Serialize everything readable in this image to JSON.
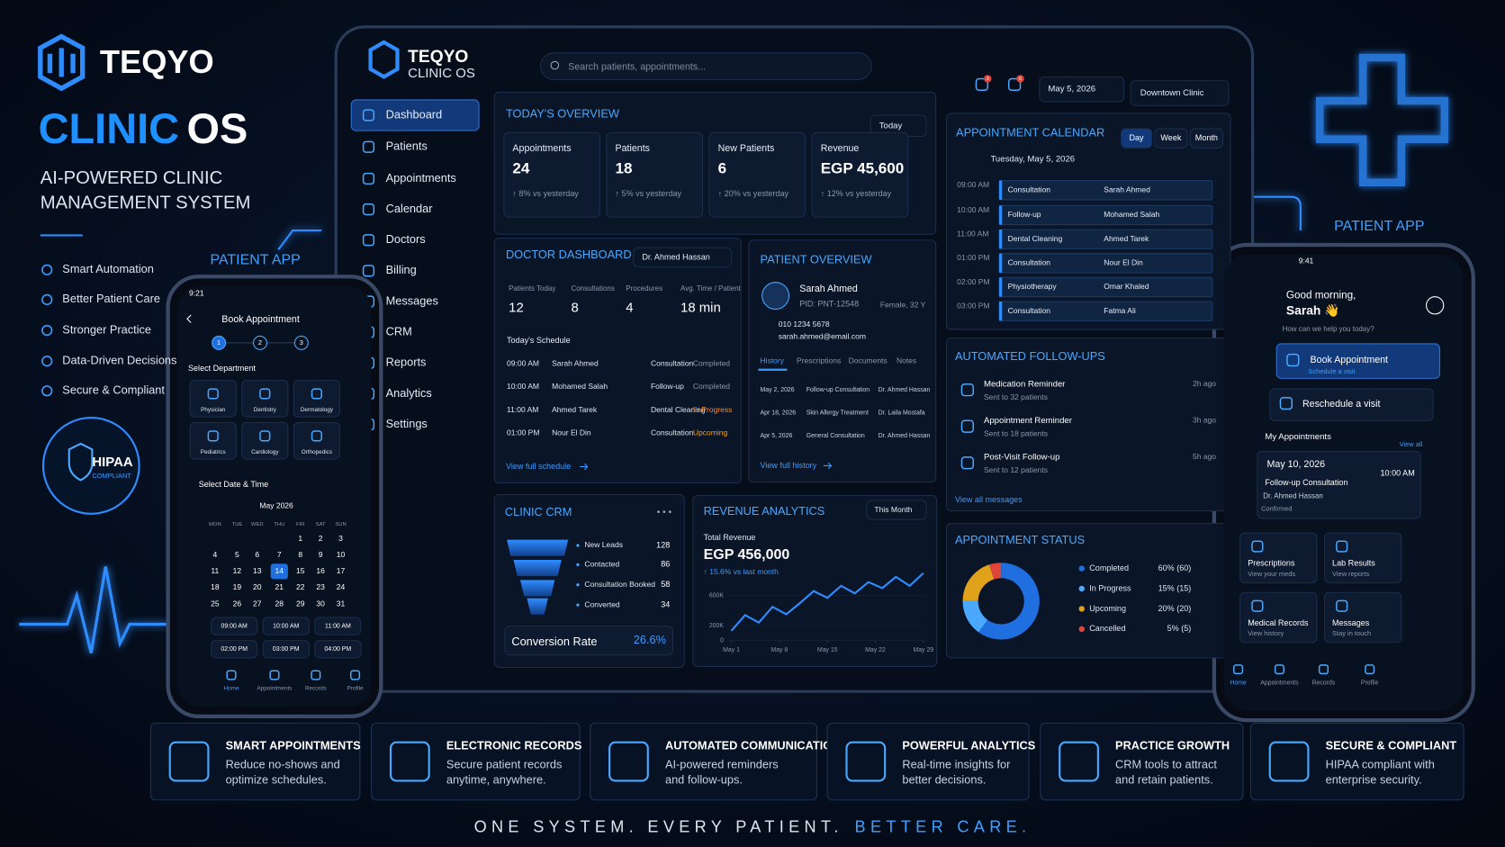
{
  "brand": {
    "name": "TEQYO",
    "product": "CLINIC",
    "product_suffix": "OS",
    "tagline": [
      "AI-POWERED CLINIC",
      "MANAGEMENT SYSTEM"
    ],
    "features": [
      "Smart Automation",
      "Better Patient Care",
      "Stronger Practice",
      "Data-Driven Decisions",
      "Secure & Compliant"
    ],
    "badge": {
      "title": "HIPAA",
      "subtitle": "COMPLIANT"
    }
  },
  "app_labels": [
    "PATIENT APP",
    "PATIENT APP"
  ],
  "dashboard": {
    "logo": {
      "name": "TEQYO",
      "product": "CLINIC OS"
    },
    "search": "Search patients, appointments...",
    "badges": [
      "3",
      "6"
    ],
    "date": "May 5, 2026",
    "clinic": "Downtown Clinic",
    "nav": [
      "Dashboard",
      "Patients",
      "Appointments",
      "Calendar",
      "Doctors",
      "Billing",
      "Messages",
      "CRM",
      "Reports",
      "Analytics",
      "Settings"
    ],
    "overview": {
      "title": "TODAY'S OVERVIEW",
      "filter": "Today",
      "cards": [
        {
          "label": "Appointments",
          "value": "24",
          "delta": "↑ 8% vs yesterday"
        },
        {
          "label": "Patients",
          "value": "18",
          "delta": "↑ 5% vs yesterday"
        },
        {
          "label": "New Patients",
          "value": "6",
          "delta": "↑ 20% vs yesterday"
        },
        {
          "label": "Revenue",
          "value": "EGP 45,600",
          "delta": "↑ 12% vs yesterday"
        }
      ]
    },
    "doctor": {
      "title": "DOCTOR DASHBOARD",
      "doctor": "Dr. Ahmed Hassan",
      "stats": [
        {
          "label": "Patients Today",
          "value": "12"
        },
        {
          "label": "Consultations",
          "value": "8"
        },
        {
          "label": "Procedures",
          "value": "4"
        },
        {
          "label": "Avg. Time / Patient",
          "value": "18 min"
        }
      ],
      "schedule_title": "Today's Schedule",
      "schedule": [
        [
          "09:00 AM",
          "Sarah Ahmed",
          "Consultation",
          "Completed"
        ],
        [
          "10:00 AM",
          "Mohamed Salah",
          "Follow-up",
          "Completed"
        ],
        [
          "11:00 AM",
          "Ahmed Tarek",
          "Dental Cleaning",
          "In Progress"
        ],
        [
          "01:00 PM",
          "Nour El Din",
          "Consultation",
          "Upcoming"
        ]
      ],
      "link": "View full schedule"
    },
    "patient": {
      "title": "PATIENT OVERVIEW",
      "name": "Sarah Ahmed",
      "pid": "PID: PNT-12548",
      "info": "Female, 32 Y",
      "phone": "010 1234 5678",
      "email": "sarah.ahmed@email.com",
      "tabs": [
        "History",
        "Prescriptions",
        "Documents",
        "Notes"
      ],
      "history": [
        [
          "May 2, 2026",
          "Follow-up Consultation",
          "Dr. Ahmed Hassan"
        ],
        [
          "Apr 18, 2026",
          "Skin Allergy Treatment",
          "Dr. Laila Mostafa"
        ],
        [
          "Apr 5, 2026",
          "General Consultation",
          "Dr. Ahmed Hassan"
        ]
      ],
      "link": "View full history"
    },
    "calendar": {
      "title": "APPOINTMENT CALENDAR",
      "tabs": [
        "Day",
        "Week",
        "Month"
      ],
      "date": "Tuesday, May 5, 2026",
      "slots": [
        [
          "09:00 AM",
          "Consultation",
          "Sarah Ahmed"
        ],
        [
          "10:00 AM",
          "Follow-up",
          "Mohamed Salah"
        ],
        [
          "11:00 AM",
          "Dental Cleaning",
          "Ahmed Tarek"
        ],
        [
          "01:00 PM",
          "Consultation",
          "Nour El Din"
        ],
        [
          "02:00 PM",
          "Physiotherapy",
          "Omar Khaled"
        ],
        [
          "03:00 PM",
          "Consultation",
          "Fatma Ali"
        ]
      ]
    },
    "followups": {
      "title": "AUTOMATED FOLLOW-UPS",
      "items": [
        [
          "Medication Reminder",
          "Sent to 32 patients",
          "2h ago"
        ],
        [
          "Appointment Reminder",
          "Sent to 18 patients",
          "3h ago"
        ],
        [
          "Post-Visit Follow-up",
          "Sent to 12 patients",
          "5h ago"
        ]
      ],
      "link": "View all messages"
    },
    "crm": {
      "title": "CLINIC CRM",
      "funnel": [
        [
          "New Leads",
          "128"
        ],
        [
          "Contacted",
          "86"
        ],
        [
          "Consultation Booked",
          "58"
        ],
        [
          "Converted",
          "34"
        ]
      ],
      "conversion_label": "Conversion Rate",
      "conversion": "26.6%"
    },
    "revenue": {
      "title": "REVENUE ANALYTICS",
      "filter": "This Month",
      "label": "Total Revenue",
      "total": "EGP 456,000",
      "delta": "↑ 15.6% vs last month",
      "chart": {
        "type": "line",
        "x": [
          1,
          3,
          5,
          7,
          9,
          11,
          13,
          15,
          17,
          19,
          21,
          23,
          25,
          27,
          29
        ],
        "values": [
          130000,
          340000,
          240000,
          450000,
          350000,
          500000,
          660000,
          570000,
          730000,
          630000,
          780000,
          700000,
          850000,
          730000,
          900000
        ],
        "color": "#2f8cff",
        "xlim": [
          1,
          29
        ],
        "ylim": [
          0,
          1000000
        ],
        "xticks": [
          {
            "value": 1,
            "label": "May 1"
          },
          {
            "value": 8,
            "label": "May 8"
          },
          {
            "value": 15,
            "label": "May 15"
          },
          {
            "value": 22,
            "label": "May 22"
          },
          {
            "value": 29,
            "label": "May 29"
          }
        ],
        "yticks": [
          0,
          {
            "value": 200000,
            "label": "200K"
          },
          {
            "value": 600000,
            "label": "600K"
          }
        ]
      }
    },
    "status": {
      "title": "APPOINTMENT STATUS",
      "chart": {
        "type": "pie",
        "categories": [
          "Completed",
          "In Progress",
          "Upcoming",
          "Cancelled"
        ],
        "values": [
          60,
          15,
          20,
          5
        ],
        "value_labels": [
          "60% (60)",
          "15% (15)",
          "20% (20)",
          "5% (5)"
        ],
        "colors": [
          "#1f6fe0",
          "#4aa8ff",
          "#e0a21a",
          "#e0453a"
        ]
      }
    }
  },
  "left_phone": {
    "time": "9:21",
    "title": "Book Appointment",
    "steps": [
      "1",
      "2",
      "3"
    ],
    "department_title": "Select Department",
    "departments": [
      "Physician",
      "Dentistry",
      "Dermatology",
      "Pediatrics",
      "Cardiology",
      "Orthopedics"
    ],
    "date_title": "Select Date & Time",
    "month": "May 2026",
    "weekdays": [
      "MON",
      "TUE",
      "WED",
      "THU",
      "FRI",
      "SAT",
      "SUN"
    ],
    "days": [
      "1",
      "2",
      "3",
      "4",
      "5",
      "6",
      "7",
      "8",
      "9",
      "10",
      "11",
      "12",
      "13",
      "14",
      "15",
      "16",
      "17",
      "18",
      "19",
      "20",
      "21",
      "22",
      "23",
      "24",
      "25",
      "26",
      "27",
      "28",
      "29",
      "30",
      "31"
    ],
    "selected_day": "14",
    "times": [
      "09:00 AM",
      "10:00 AM",
      "11:00 AM",
      "02:00 PM",
      "03:00 PM",
      "04:00 PM"
    ],
    "tabs": [
      "Home",
      "Appointments",
      "Records",
      "Profile"
    ]
  },
  "right_phone": {
    "time": "9:41",
    "greeting": "Good morning,",
    "name": "Sarah 👋",
    "prompt": "How can we help you today?",
    "book": "Book Appointment",
    "book_sub": "Schedule a visit",
    "reschedule": "Reschedule a visit",
    "appointments_title": "My Appointments",
    "view_all": "View all",
    "appointment": {
      "date": "May 10, 2026",
      "time": "10:00 AM",
      "type": "Follow-up Consultation",
      "doctor": "Dr. Ahmed Hassan",
      "status": "Confirmed"
    },
    "tiles": [
      [
        "Prescriptions",
        "View your meds"
      ],
      [
        "Lab Results",
        "View reports"
      ],
      [
        "Medical Records",
        "View history"
      ],
      [
        "Messages",
        "Stay in touch"
      ]
    ],
    "tabs": [
      "Home",
      "Appointments",
      "Records",
      "Profile"
    ]
  },
  "features": [
    {
      "title": "SMART APPOINTMENTS",
      "lines": [
        "Reduce no-shows and",
        "optimize schedules."
      ]
    },
    {
      "title": "ELECTRONIC RECORDS",
      "lines": [
        "Secure patient records",
        "anytime, anywhere."
      ]
    },
    {
      "title": "AUTOMATED COMMUNICATION",
      "lines": [
        "AI-powered reminders",
        "and follow-ups."
      ]
    },
    {
      "title": "POWERFUL ANALYTICS",
      "lines": [
        "Real-time insights for",
        "better decisions."
      ]
    },
    {
      "title": "PRACTICE GROWTH",
      "lines": [
        "CRM tools to attract",
        "and retain patients."
      ]
    },
    {
      "title": "SECURE & COMPLIANT",
      "lines": [
        "HIPAA compliant with",
        "enterprise security."
      ]
    }
  ],
  "slogan": [
    "ONE SYSTEM. EVERY PATIENT.",
    "BETTER CARE."
  ]
}
